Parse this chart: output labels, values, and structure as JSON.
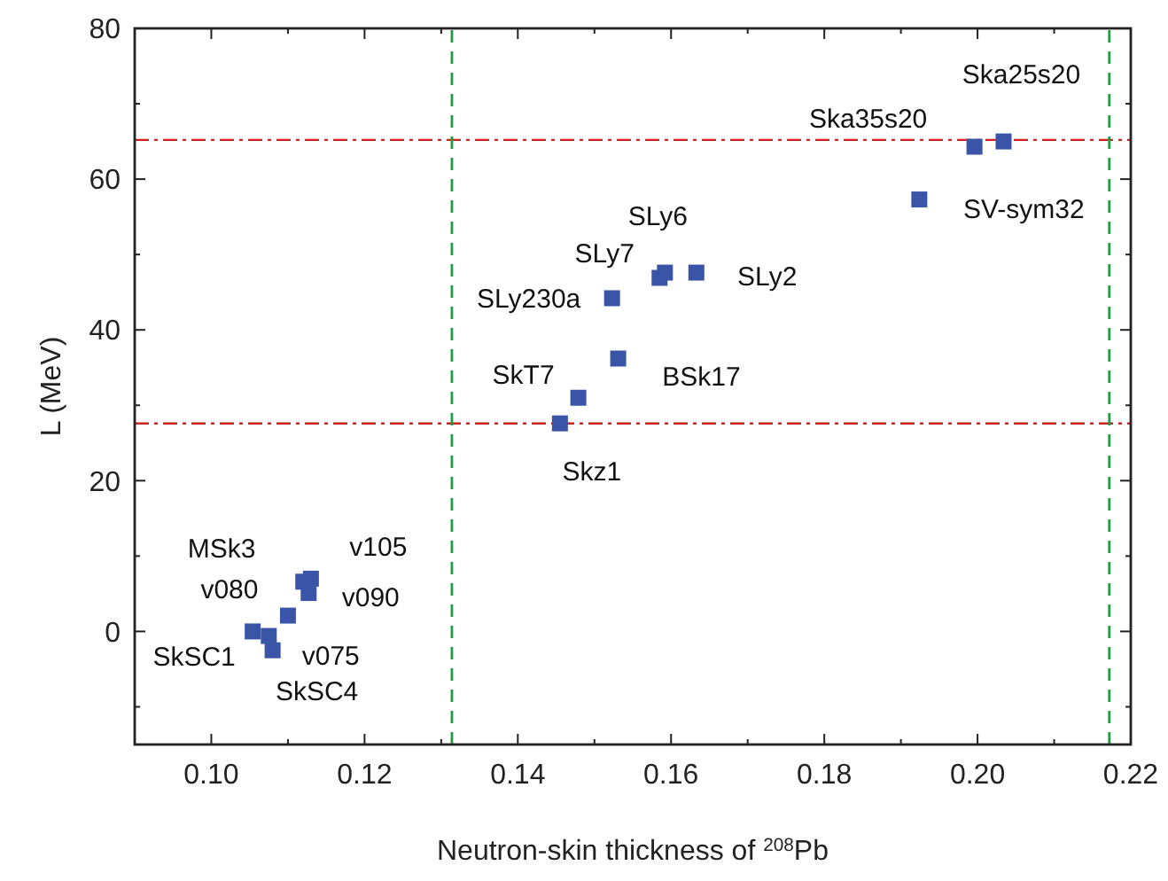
{
  "chart_data": {
    "type": "scatter",
    "xlabel": "Neutron-skin thickness of $^{208}$Pb",
    "ylabel": "L (MeV)",
    "xlim": [
      0.09,
      0.22
    ],
    "ylim": [
      -15,
      80
    ],
    "xticks": [
      {
        "value": 0.1,
        "label": "0.10"
      },
      {
        "value": 0.12,
        "label": "0.12"
      },
      {
        "value": 0.14,
        "label": "0.14"
      },
      {
        "value": 0.16,
        "label": "0.16"
      },
      {
        "value": 0.18,
        "label": "0.18"
      },
      {
        "value": 0.2,
        "label": "0.20"
      },
      {
        "value": 0.22,
        "label": "0.22"
      }
    ],
    "yticks": [
      0,
      20,
      40,
      60,
      80
    ],
    "grid": false,
    "marker": "square",
    "series": [
      {
        "color": "#3a55a8",
        "x": [
          0.1054,
          0.1075,
          0.108,
          0.11,
          0.1127,
          0.112,
          0.113,
          0.1523,
          0.1585,
          0.1592,
          0.1633,
          0.1531,
          0.1479,
          0.1455,
          0.1996,
          0.2034,
          0.1924
        ],
        "values": [
          0,
          -0.6,
          -2.5,
          2.1,
          5.1,
          6.6,
          7.0,
          44.2,
          46.9,
          47.6,
          47.6,
          36.2,
          31.0,
          27.6,
          64.3,
          65.0,
          57.3
        ]
      }
    ],
    "ref_lines": [
      {
        "axis": "y",
        "value": 65.2,
        "color": "#cc2222",
        "line_style": "dashdot"
      },
      {
        "axis": "y",
        "value": 27.6,
        "color": "#cc2222",
        "line_style": "dashdot"
      },
      {
        "axis": "x",
        "value": 0.1314,
        "color": "#229944",
        "line_style": "dashed"
      },
      {
        "axis": "x",
        "value": 0.2172,
        "color": "#229944",
        "line_style": "dashed"
      }
    ],
    "annotations": [
      {
        "text": "SkSC1",
        "x": 0.1054,
        "y": 0
      },
      {
        "text": "v075",
        "x": 0.1075,
        "y": -0.6
      },
      {
        "text": "SkSC4",
        "x": 0.108,
        "y": -2.5
      },
      {
        "text": "v080",
        "x": 0.11,
        "y": 2.1
      },
      {
        "text": "v090",
        "x": 0.1127,
        "y": 5.1
      },
      {
        "text": "MSk3",
        "x": 0.112,
        "y": 6.6
      },
      {
        "text": "v105",
        "x": 0.113,
        "y": 7.0
      },
      {
        "text": "SLy230a",
        "x": 0.1523,
        "y": 44.2
      },
      {
        "text": "SLy7",
        "x": 0.1585,
        "y": 46.9
      },
      {
        "text": "SLy6",
        "x": 0.1592,
        "y": 47.6
      },
      {
        "text": "SLy2",
        "x": 0.1633,
        "y": 47.6
      },
      {
        "text": "BSk17",
        "x": 0.1531,
        "y": 36.2
      },
      {
        "text": "SkT7",
        "x": 0.1479,
        "y": 31.0
      },
      {
        "text": "Skz1",
        "x": 0.1455,
        "y": 27.6
      },
      {
        "text": "Ska35s20",
        "x": 0.1996,
        "y": 64.3
      },
      {
        "text": "Ska25s20",
        "x": 0.2034,
        "y": 65.0
      },
      {
        "text": "SV-sym32",
        "x": 0.1924,
        "y": 57.3
      }
    ]
  }
}
